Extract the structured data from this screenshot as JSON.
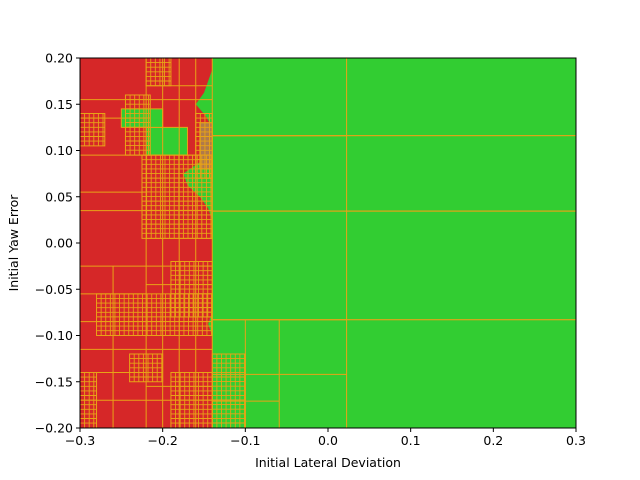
{
  "chart_data": {
    "type": "heatmap",
    "title": "",
    "xlabel": "Initial Lateral Deviation",
    "ylabel": "Initial Yaw Error",
    "xlim": [
      -0.3,
      0.3
    ],
    "ylim": [
      -0.2,
      0.2
    ],
    "xticks": [
      -0.3,
      -0.2,
      -0.1,
      0.0,
      0.1,
      0.2,
      0.3
    ],
    "xtick_labels": [
      "−0.3",
      "−0.2",
      "−0.1",
      "0.0",
      "0.1",
      "0.2",
      "0.3"
    ],
    "yticks": [
      0.2,
      0.15,
      0.1,
      0.05,
      0.0,
      -0.05,
      -0.1,
      -0.15,
      -0.2
    ],
    "ytick_labels": [
      "0.20",
      "0.15",
      "0.10",
      "0.05",
      "0.00",
      "−0.05",
      "−0.10",
      "−0.15",
      "−0.20"
    ],
    "grid": false,
    "colors": {
      "red": "#d62728",
      "green": "#32cd32",
      "mixed": "#b07a4a",
      "cell_edge": "#e8a317"
    },
    "boundary_x": [
      -0.14,
      -0.14,
      -0.145,
      -0.15,
      -0.16,
      -0.148,
      -0.14,
      -0.145,
      -0.15,
      -0.155,
      -0.175,
      -0.17,
      -0.155,
      -0.145,
      -0.14,
      -0.14,
      -0.14,
      -0.14,
      -0.14,
      -0.14,
      -0.14,
      -0.14,
      -0.14,
      -0.145,
      -0.14,
      -0.135,
      -0.13,
      -0.12,
      -0.115,
      -0.11,
      -0.12,
      -0.125,
      -0.13
    ],
    "regions": [
      {
        "x0": -0.14,
        "x1": 0.3,
        "y0": 0.116,
        "y1": 0.2,
        "value": "green"
      },
      {
        "x0": -0.14,
        "x1": 0.3,
        "y0": 0.0345,
        "y1": 0.116,
        "value": "green"
      },
      {
        "x0": -0.14,
        "x1": 0.3,
        "y0": -0.083,
        "y1": 0.0345,
        "value": "green"
      },
      {
        "x0": -0.14,
        "x1": 0.3,
        "y0": -0.2,
        "y1": -0.083,
        "value": "green"
      },
      {
        "x0": -0.22,
        "x1": -0.17,
        "y0": 0.095,
        "y1": 0.125,
        "value": "green"
      },
      {
        "x0": -0.25,
        "x1": -0.2,
        "y0": 0.125,
        "y1": 0.145,
        "value": "green"
      },
      {
        "x0": -0.155,
        "x1": -0.14,
        "y0": 0.08,
        "y1": 0.13,
        "value": "mixed"
      }
    ],
    "grid_lines": [
      {
        "x0": 0.0225,
        "x1": 0.0225,
        "y0": -0.2,
        "y1": 0.2
      },
      {
        "x0": -0.14,
        "x1": 0.0225,
        "y0": 0.116,
        "y1": 0.116
      },
      {
        "x0": -0.14,
        "x1": 0.3,
        "y0": 0.0345,
        "y1": 0.0345
      },
      {
        "x0": -0.14,
        "x1": 0.0225,
        "y0": -0.083,
        "y1": -0.083
      },
      {
        "x0": -0.14,
        "x1": 0.0225,
        "y0": -0.142,
        "y1": -0.142
      },
      {
        "x0": -0.059,
        "x1": -0.059,
        "y0": -0.2,
        "y1": -0.083
      },
      {
        "x0": -0.1,
        "x1": -0.1,
        "y0": -0.2,
        "y1": -0.083
      },
      {
        "x0": -0.14,
        "x1": -0.059,
        "y0": -0.171,
        "y1": -0.171
      },
      {
        "x0": -0.26,
        "x1": -0.26,
        "y0": -0.2,
        "y1": -0.025
      },
      {
        "x0": -0.22,
        "x1": -0.22,
        "y0": -0.2,
        "y1": 0.2
      },
      {
        "x0": -0.18,
        "x1": -0.18,
        "y0": -0.2,
        "y1": 0.2
      },
      {
        "x0": -0.3,
        "x1": -0.14,
        "y0": -0.025,
        "y1": -0.025
      },
      {
        "x0": -0.3,
        "x1": -0.14,
        "y0": -0.085,
        "y1": -0.085
      },
      {
        "x0": -0.3,
        "x1": -0.14,
        "y0": -0.115,
        "y1": -0.115
      },
      {
        "x0": -0.3,
        "x1": -0.14,
        "y0": -0.17,
        "y1": -0.17
      },
      {
        "x0": -0.3,
        "x1": -0.14,
        "y0": 0.035,
        "y1": 0.035
      },
      {
        "x0": -0.3,
        "x1": -0.14,
        "y0": 0.095,
        "y1": 0.095
      },
      {
        "x0": -0.3,
        "x1": -0.14,
        "y0": 0.155,
        "y1": 0.155
      },
      {
        "x0": -0.3,
        "x1": -0.22,
        "y0": 0.055,
        "y1": 0.055
      },
      {
        "x0": -0.3,
        "x1": -0.22,
        "y0": 0.135,
        "y1": 0.135
      },
      {
        "x0": -0.3,
        "x1": -0.22,
        "y0": -0.055,
        "y1": -0.055
      },
      {
        "x0": -0.3,
        "x1": -0.22,
        "y0": -0.14,
        "y1": -0.14
      },
      {
        "x0": -0.2,
        "x1": -0.2,
        "y0": -0.2,
        "y1": 0.2
      },
      {
        "x0": -0.16,
        "x1": -0.16,
        "y0": -0.2,
        "y1": 0.2
      },
      {
        "x0": -0.22,
        "x1": -0.14,
        "y0": 0.17,
        "y1": 0.17
      },
      {
        "x0": -0.22,
        "x1": -0.14,
        "y0": 0.005,
        "y1": 0.005
      },
      {
        "x0": -0.22,
        "x1": -0.14,
        "y0": -0.045,
        "y1": -0.045
      },
      {
        "x0": -0.22,
        "x1": -0.14,
        "y0": -0.1,
        "y1": -0.1
      },
      {
        "x0": -0.22,
        "x1": -0.14,
        "y0": -0.155,
        "y1": -0.155
      }
    ],
    "dense_regions": [
      {
        "x0": -0.3,
        "x1": -0.27,
        "y0": 0.105,
        "y1": 0.14
      },
      {
        "x0": -0.245,
        "x1": -0.215,
        "y0": 0.095,
        "y1": 0.16
      },
      {
        "x0": -0.225,
        "x1": -0.14,
        "y0": 0.005,
        "y1": 0.095
      },
      {
        "x0": -0.28,
        "x1": -0.14,
        "y0": -0.1,
        "y1": -0.055
      },
      {
        "x0": -0.3,
        "x1": -0.28,
        "y0": -0.2,
        "y1": -0.14
      },
      {
        "x0": -0.24,
        "x1": -0.2,
        "y0": -0.15,
        "y1": -0.12
      },
      {
        "x0": -0.19,
        "x1": -0.14,
        "y0": -0.2,
        "y1": -0.14
      },
      {
        "x0": -0.19,
        "x1": -0.14,
        "y0": -0.08,
        "y1": -0.02
      },
      {
        "x0": -0.14,
        "x1": -0.1,
        "y0": -0.2,
        "y1": -0.12
      },
      {
        "x0": -0.16,
        "x1": -0.14,
        "y0": 0.07,
        "y1": 0.14
      },
      {
        "x0": -0.22,
        "x1": -0.19,
        "y0": 0.17,
        "y1": 0.2
      }
    ]
  }
}
